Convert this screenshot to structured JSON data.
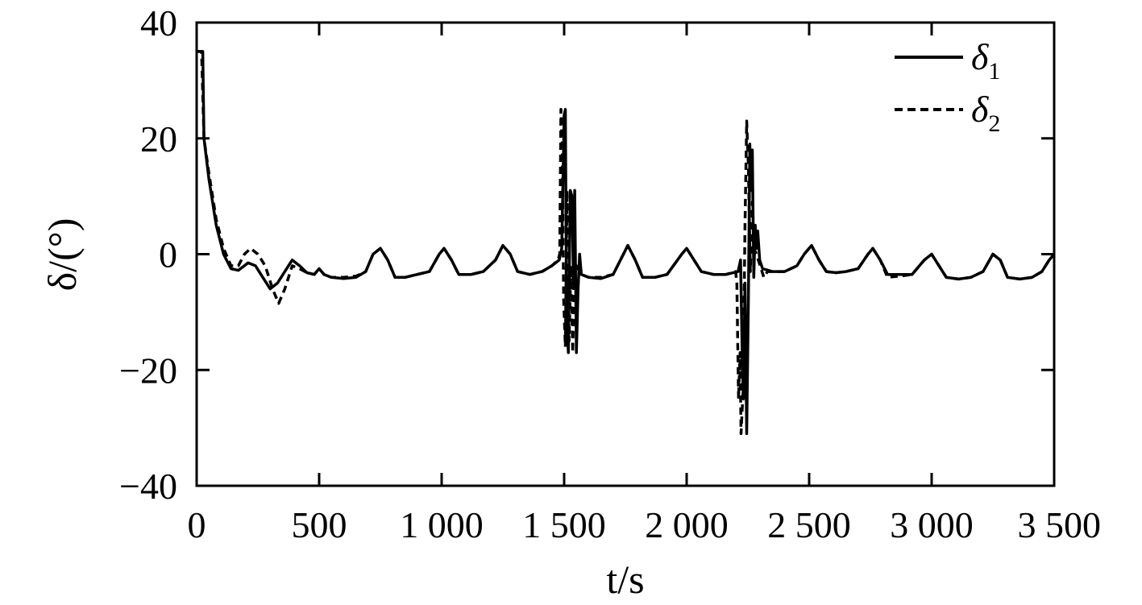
{
  "chart_data": {
    "type": "line",
    "title": "",
    "xlabel": "t/s",
    "ylabel": "δ/(°)",
    "xlim": [
      0,
      3500
    ],
    "ylim": [
      -40,
      40
    ],
    "grid": false,
    "legend_position": "top-right",
    "x_ticks": [
      0,
      500,
      1000,
      1500,
      2000,
      2500,
      3000,
      3500
    ],
    "x_tick_labels": [
      "0",
      "500",
      "1 000",
      "1 500",
      "2 000",
      "2 500",
      "3 000",
      "3 500"
    ],
    "y_ticks": [
      40,
      20,
      0,
      -20,
      -40
    ],
    "y_tick_labels": [
      "40",
      "20",
      "0",
      "−20",
      "−40"
    ],
    "series": [
      {
        "name": "δ1",
        "name_base": "δ",
        "name_sub": "1",
        "style": "solid",
        "color": "#000000",
        "points": [
          [
            0,
            35
          ],
          [
            25,
            35
          ],
          [
            30,
            20
          ],
          [
            50,
            13
          ],
          [
            80,
            5
          ],
          [
            110,
            0
          ],
          [
            140,
            -2.5
          ],
          [
            170,
            -2.8
          ],
          [
            210,
            -1.5
          ],
          [
            240,
            -2
          ],
          [
            270,
            -4
          ],
          [
            300,
            -6
          ],
          [
            330,
            -5
          ],
          [
            360,
            -3
          ],
          [
            390,
            -1
          ],
          [
            420,
            -2
          ],
          [
            450,
            -3.2
          ],
          [
            480,
            -3.5
          ],
          [
            500,
            -2.5
          ],
          [
            520,
            -3.5
          ],
          [
            550,
            -4
          ],
          [
            600,
            -4.2
          ],
          [
            650,
            -4
          ],
          [
            690,
            -3
          ],
          [
            720,
            0
          ],
          [
            750,
            1
          ],
          [
            780,
            -1
          ],
          [
            810,
            -4
          ],
          [
            850,
            -4
          ],
          [
            900,
            -3.5
          ],
          [
            950,
            -3
          ],
          [
            990,
            0
          ],
          [
            1010,
            1
          ],
          [
            1040,
            -1
          ],
          [
            1070,
            -3.5
          ],
          [
            1120,
            -3.5
          ],
          [
            1170,
            -3
          ],
          [
            1220,
            -1
          ],
          [
            1250,
            1.5
          ],
          [
            1280,
            0
          ],
          [
            1310,
            -3
          ],
          [
            1360,
            -3.5
          ],
          [
            1410,
            -3
          ],
          [
            1450,
            -2
          ],
          [
            1480,
            -1
          ],
          [
            1490,
            1
          ],
          [
            1500,
            24
          ],
          [
            1505,
            25
          ],
          [
            1510,
            -10
          ],
          [
            1517,
            -17
          ],
          [
            1525,
            11
          ],
          [
            1532,
            10
          ],
          [
            1538,
            -5
          ],
          [
            1543,
            11
          ],
          [
            1550,
            -17
          ],
          [
            1557,
            -6
          ],
          [
            1563,
            0
          ],
          [
            1570,
            -3.5
          ],
          [
            1600,
            -4
          ],
          [
            1650,
            -4.2
          ],
          [
            1700,
            -3.5
          ],
          [
            1730,
            -1
          ],
          [
            1760,
            1.5
          ],
          [
            1790,
            -1
          ],
          [
            1820,
            -4
          ],
          [
            1870,
            -4
          ],
          [
            1920,
            -3.5
          ],
          [
            1980,
            0
          ],
          [
            2000,
            1
          ],
          [
            2030,
            -1
          ],
          [
            2060,
            -3
          ],
          [
            2110,
            -3.5
          ],
          [
            2160,
            -3.5
          ],
          [
            2210,
            -3
          ],
          [
            2220,
            -1
          ],
          [
            2228,
            -20
          ],
          [
            2232,
            -25
          ],
          [
            2238,
            -5
          ],
          [
            2245,
            -31
          ],
          [
            2252,
            -8
          ],
          [
            2258,
            19
          ],
          [
            2262,
            11
          ],
          [
            2268,
            18
          ],
          [
            2274,
            -4
          ],
          [
            2280,
            5
          ],
          [
            2285,
            1
          ],
          [
            2290,
            4
          ],
          [
            2298,
            -1
          ],
          [
            2310,
            -2.5
          ],
          [
            2350,
            -3
          ],
          [
            2400,
            -3
          ],
          [
            2450,
            -2
          ],
          [
            2480,
            0
          ],
          [
            2510,
            1.5
          ],
          [
            2540,
            -1
          ],
          [
            2570,
            -3
          ],
          [
            2610,
            -3.2
          ],
          [
            2650,
            -3
          ],
          [
            2700,
            -2.5
          ],
          [
            2740,
            0
          ],
          [
            2760,
            1
          ],
          [
            2790,
            -1
          ],
          [
            2820,
            -3.5
          ],
          [
            2870,
            -3.5
          ],
          [
            2920,
            -3.5
          ],
          [
            2970,
            -1
          ],
          [
            3000,
            0
          ],
          [
            3030,
            -2
          ],
          [
            3060,
            -4
          ],
          [
            3110,
            -4.3
          ],
          [
            3160,
            -4
          ],
          [
            3210,
            -3
          ],
          [
            3250,
            0
          ],
          [
            3280,
            -1
          ],
          [
            3310,
            -4
          ],
          [
            3360,
            -4.3
          ],
          [
            3410,
            -4
          ],
          [
            3450,
            -3
          ],
          [
            3480,
            -1
          ],
          [
            3500,
            0
          ]
        ]
      },
      {
        "name": "δ2",
        "name_base": "δ",
        "name_sub": "2",
        "style": "dashed",
        "color": "#000000",
        "points": [
          [
            0,
            35
          ],
          [
            20,
            35
          ],
          [
            30,
            20
          ],
          [
            50,
            14
          ],
          [
            80,
            6
          ],
          [
            110,
            1
          ],
          [
            140,
            -2
          ],
          [
            170,
            -2
          ],
          [
            195,
            0
          ],
          [
            220,
            1
          ],
          [
            250,
            0
          ],
          [
            280,
            -2
          ],
          [
            310,
            -6
          ],
          [
            335,
            -8.5
          ],
          [
            360,
            -6
          ],
          [
            390,
            -2
          ],
          [
            420,
            -2.5
          ],
          [
            450,
            -3.2
          ],
          [
            480,
            -3.5
          ],
          [
            500,
            -2.5
          ],
          [
            520,
            -3.5
          ],
          [
            550,
            -4
          ],
          [
            600,
            -4
          ],
          [
            650,
            -3.8
          ],
          [
            690,
            -3
          ],
          [
            720,
            0
          ],
          [
            750,
            1
          ],
          [
            780,
            -1
          ],
          [
            810,
            -4
          ],
          [
            850,
            -4
          ],
          [
            900,
            -3.5
          ],
          [
            950,
            -3
          ],
          [
            990,
            0
          ],
          [
            1010,
            1
          ],
          [
            1040,
            -1
          ],
          [
            1070,
            -3.5
          ],
          [
            1120,
            -3.5
          ],
          [
            1170,
            -3
          ],
          [
            1220,
            -1
          ],
          [
            1250,
            1.5
          ],
          [
            1280,
            0
          ],
          [
            1310,
            -3
          ],
          [
            1360,
            -3.5
          ],
          [
            1410,
            -3
          ],
          [
            1450,
            -2
          ],
          [
            1475,
            -1
          ],
          [
            1482,
            0
          ],
          [
            1487,
            25
          ],
          [
            1492,
            19
          ],
          [
            1498,
            -8
          ],
          [
            1505,
            -16
          ],
          [
            1512,
            11
          ],
          [
            1520,
            -15
          ],
          [
            1528,
            -2
          ],
          [
            1535,
            -17
          ],
          [
            1542,
            -4
          ],
          [
            1550,
            -2
          ],
          [
            1570,
            -3.5
          ],
          [
            1600,
            -4
          ],
          [
            1650,
            -4
          ],
          [
            1700,
            -3.5
          ],
          [
            1730,
            -1
          ],
          [
            1760,
            1.5
          ],
          [
            1790,
            -1
          ],
          [
            1820,
            -4
          ],
          [
            1870,
            -4
          ],
          [
            1920,
            -3.5
          ],
          [
            1980,
            0
          ],
          [
            2000,
            1
          ],
          [
            2030,
            -1
          ],
          [
            2060,
            -3
          ],
          [
            2110,
            -3.5
          ],
          [
            2160,
            -3.5
          ],
          [
            2200,
            -3
          ],
          [
            2205,
            -5
          ],
          [
            2212,
            -25
          ],
          [
            2218,
            -17
          ],
          [
            2222,
            -31
          ],
          [
            2230,
            -24
          ],
          [
            2238,
            5
          ],
          [
            2245,
            23
          ],
          [
            2252,
            15
          ],
          [
            2260,
            -3
          ],
          [
            2268,
            9
          ],
          [
            2275,
            1
          ],
          [
            2285,
            0
          ],
          [
            2300,
            -2
          ],
          [
            2315,
            -4
          ],
          [
            2330,
            -3
          ],
          [
            2360,
            -3
          ],
          [
            2400,
            -3
          ],
          [
            2450,
            -2
          ],
          [
            2480,
            0
          ],
          [
            2510,
            1.5
          ],
          [
            2540,
            -1
          ],
          [
            2570,
            -3
          ],
          [
            2610,
            -3.2
          ],
          [
            2650,
            -3
          ],
          [
            2700,
            -2.5
          ],
          [
            2740,
            0
          ],
          [
            2760,
            1
          ],
          [
            2790,
            -1
          ],
          [
            2820,
            -4
          ],
          [
            2870,
            -3.8
          ],
          [
            2920,
            -3.5
          ],
          [
            2970,
            -1
          ],
          [
            3000,
            0
          ],
          [
            3030,
            -2
          ],
          [
            3060,
            -4
          ],
          [
            3110,
            -4.3
          ],
          [
            3160,
            -4
          ],
          [
            3210,
            -3
          ],
          [
            3250,
            0
          ],
          [
            3280,
            -1
          ],
          [
            3310,
            -4
          ],
          [
            3360,
            -4.3
          ],
          [
            3410,
            -4
          ],
          [
            3450,
            -3
          ],
          [
            3480,
            -1
          ],
          [
            3500,
            0
          ]
        ]
      }
    ]
  }
}
